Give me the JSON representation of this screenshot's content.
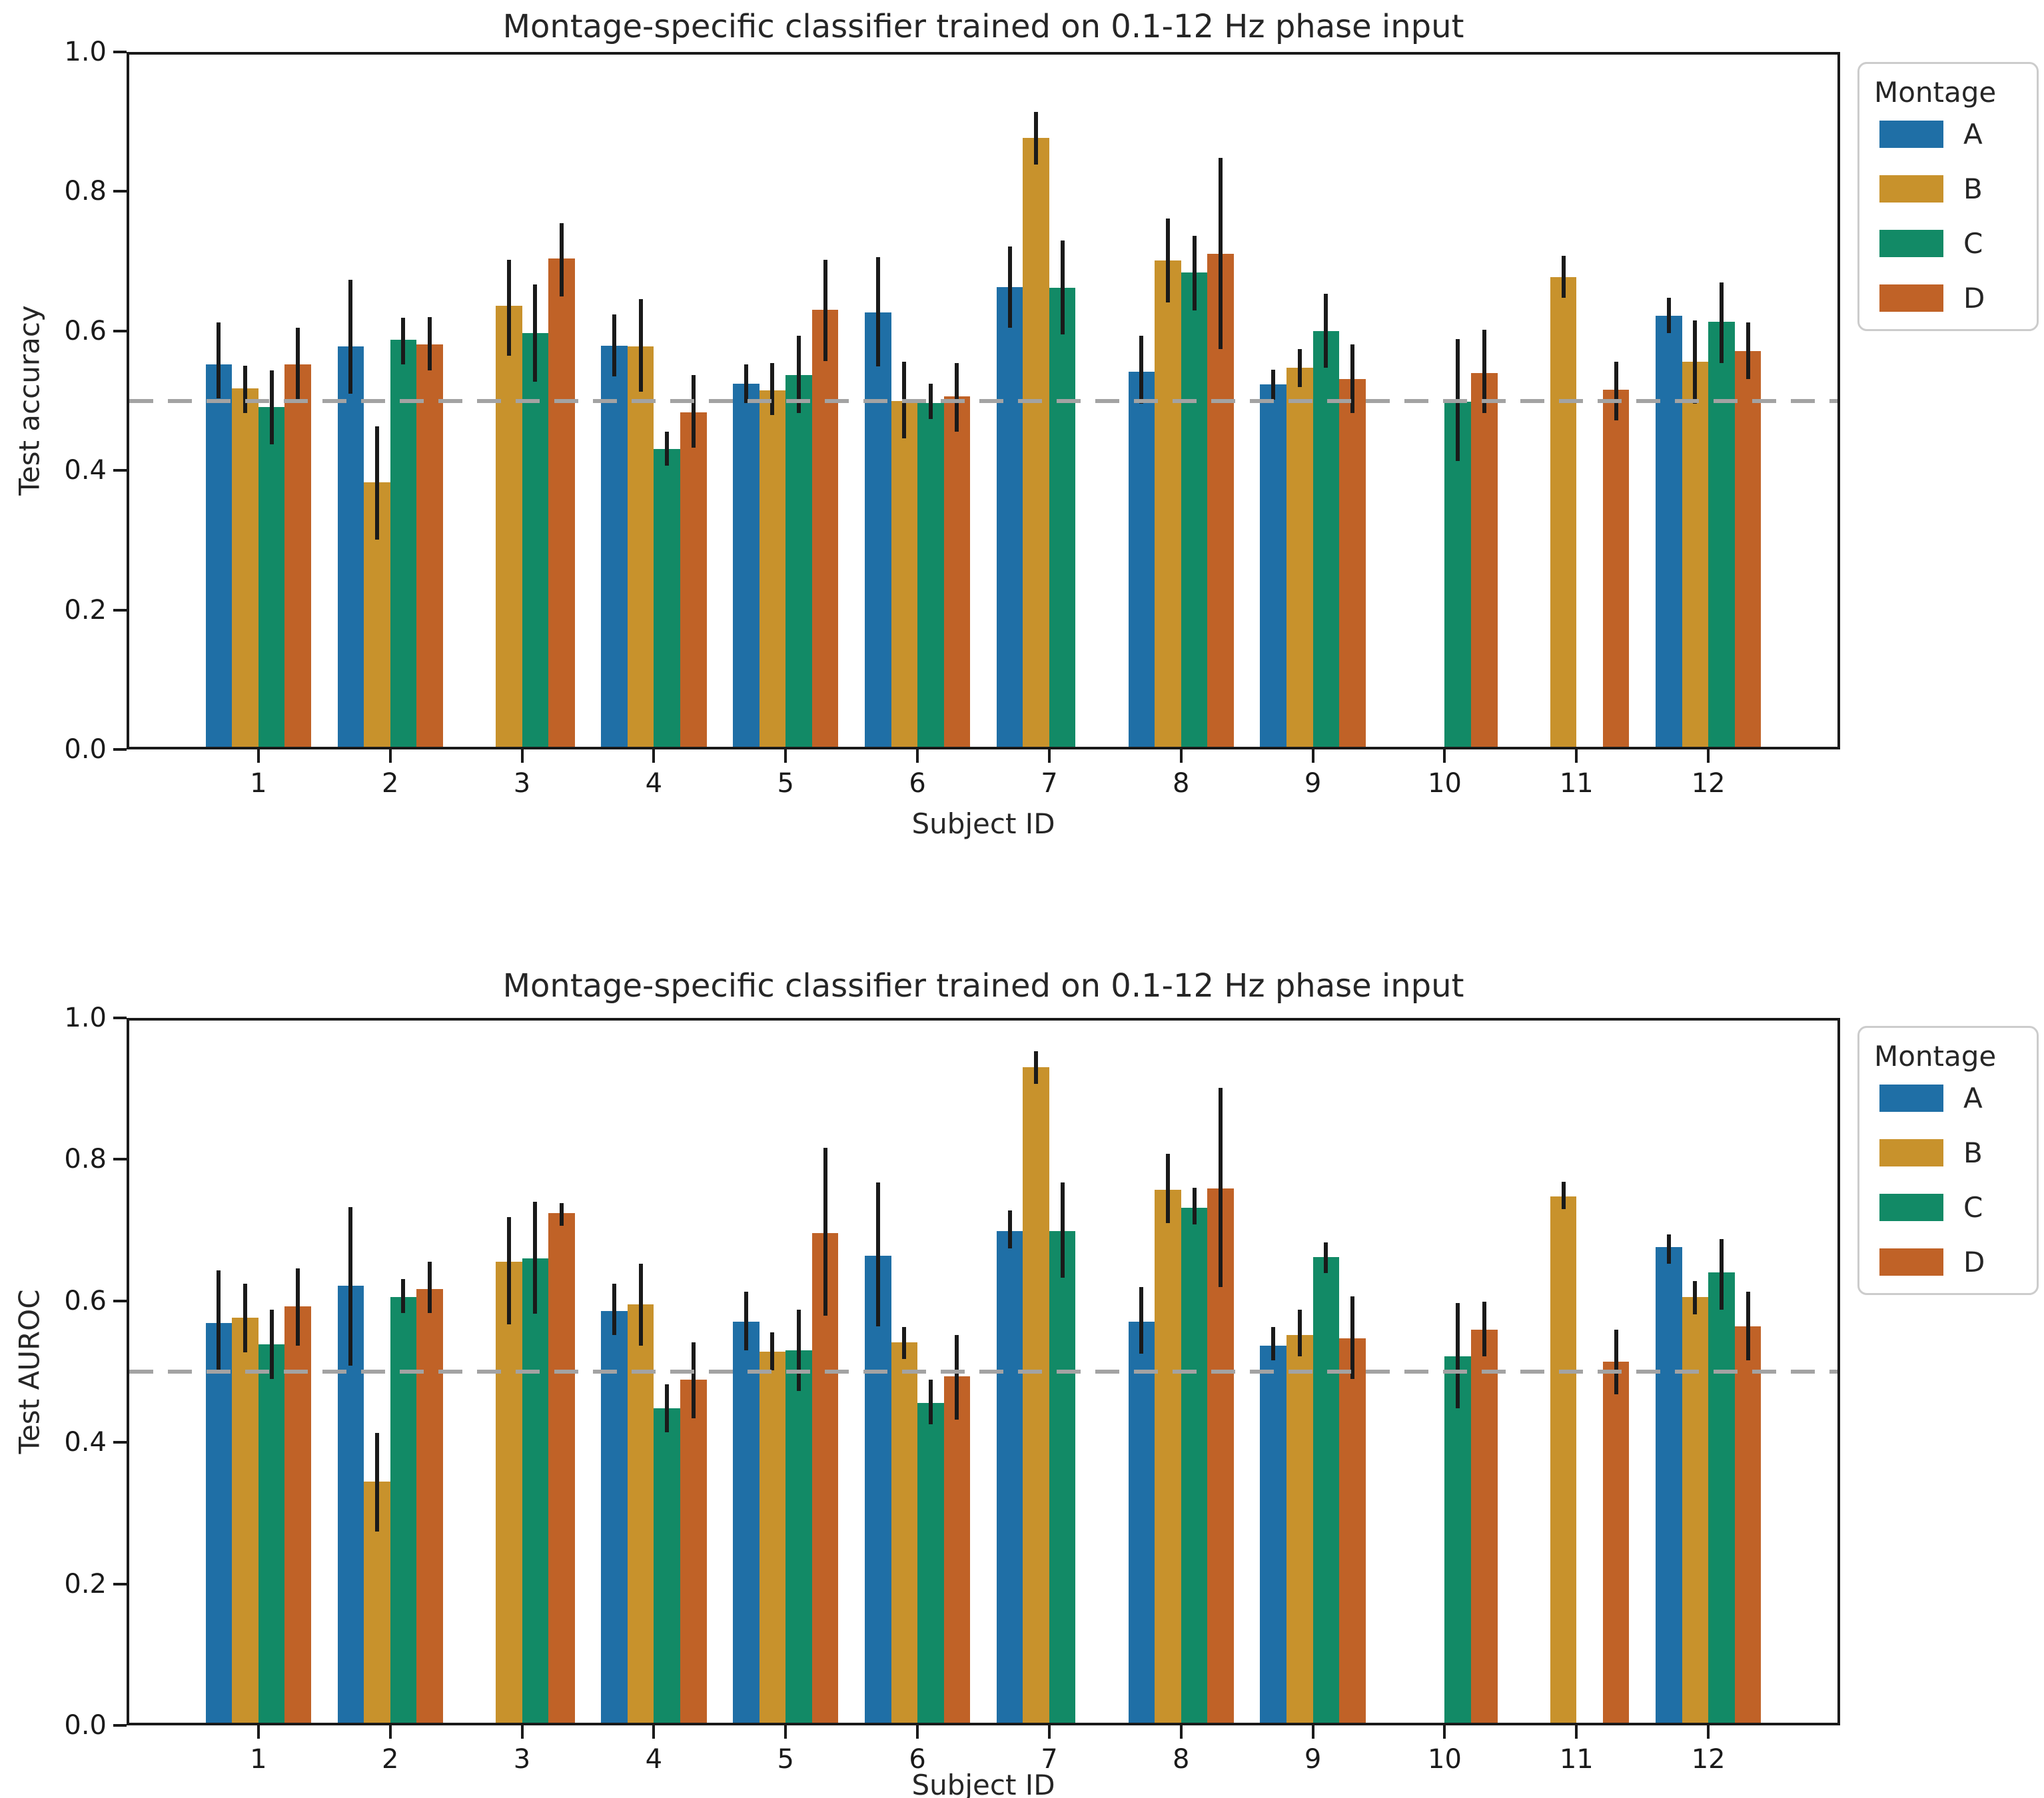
{
  "figure": {
    "background": "#ffffff",
    "chance_line": {
      "value": 0.5,
      "style": "dashed",
      "color": "#a3a3a3"
    }
  },
  "legend": {
    "title": "Montage",
    "items": [
      {
        "label": "A",
        "color": "#1f6fa6"
      },
      {
        "label": "B",
        "color": "#c8922c"
      },
      {
        "label": "C",
        "color": "#128a66"
      },
      {
        "label": "D",
        "color": "#c06227"
      }
    ]
  },
  "chart_data": [
    {
      "type": "bar",
      "title": "Montage-specific classifier trained on 0.1-12 Hz phase input",
      "xlabel": "Subject ID",
      "ylabel": "Test accuracy",
      "ylim": [
        0.0,
        1.0
      ],
      "yticks": [
        "1.0",
        "0.8",
        "0.6",
        "0.4",
        "0.2",
        "0.0"
      ],
      "ytick_values": [
        1.0,
        0.8,
        0.6,
        0.4,
        0.2,
        0.0
      ],
      "grid": false,
      "legend_position": "upper right outside",
      "chance_level": 0.5,
      "categories": [
        "1",
        "2",
        "3",
        "4",
        "5",
        "6",
        "7",
        "8",
        "9",
        "10",
        "11",
        "12"
      ],
      "series": [
        {
          "name": "A",
          "color": "#1f6fa6",
          "values": [
            0.552,
            0.578,
            null,
            0.579,
            0.524,
            0.627,
            0.663,
            0.542,
            0.523,
            null,
            null,
            0.622
          ],
          "err_lo": [
            0.503,
            0.51,
            null,
            0.535,
            0.497,
            0.549,
            0.605,
            0.496,
            0.501,
            null,
            null,
            0.597
          ],
          "err_hi": [
            0.612,
            0.673,
            null,
            0.624,
            0.552,
            0.706,
            0.721,
            0.593,
            0.544,
            null,
            null,
            0.648
          ]
        },
        {
          "name": "B",
          "color": "#c8922c",
          "values": [
            0.518,
            0.383,
            0.636,
            0.578,
            0.515,
            0.5,
            0.877,
            0.701,
            0.547,
            null,
            0.677,
            0.556
          ],
          "err_lo": [
            0.482,
            0.301,
            0.564,
            0.513,
            0.479,
            0.446,
            0.839,
            0.641,
            0.52,
            null,
            0.648,
            0.496
          ],
          "err_hi": [
            0.55,
            0.463,
            0.702,
            0.646,
            0.554,
            0.556,
            0.914,
            0.761,
            0.574,
            null,
            0.708,
            0.615
          ]
        },
        {
          "name": "C",
          "color": "#128a66",
          "values": [
            0.491,
            0.587,
            0.597,
            0.431,
            0.537,
            0.497,
            0.662,
            0.684,
            0.6,
            0.499,
            null,
            0.613
          ],
          "err_lo": [
            0.437,
            0.552,
            0.527,
            0.407,
            0.482,
            0.474,
            0.595,
            0.629,
            0.547,
            0.414,
            null,
            0.554
          ],
          "err_hi": [
            0.543,
            0.619,
            0.667,
            0.456,
            0.593,
            0.524,
            0.73,
            0.736,
            0.653,
            0.588,
            null,
            0.67
          ]
        },
        {
          "name": "D",
          "color": "#c06227",
          "values": [
            0.552,
            0.581,
            0.704,
            0.483,
            0.63,
            0.506,
            null,
            0.711,
            0.531,
            0.54,
            0.516,
            0.571
          ],
          "err_lo": [
            0.499,
            0.543,
            0.649,
            0.433,
            0.557,
            0.456,
            null,
            0.574,
            0.482,
            0.482,
            0.472,
            0.531
          ],
          "err_hi": [
            0.605,
            0.62,
            0.755,
            0.537,
            0.702,
            0.554,
            null,
            0.848,
            0.581,
            0.602,
            0.556,
            0.612
          ]
        }
      ]
    },
    {
      "type": "bar",
      "title": "Montage-specific classifier trained on 0.1-12 Hz phase input",
      "xlabel": "Subject ID",
      "ylabel": "Test AUROC",
      "ylim": [
        0.0,
        1.0
      ],
      "yticks": [
        "1.0",
        "0.8",
        "0.6",
        "0.4",
        "0.2",
        "0.0"
      ],
      "ytick_values": [
        1.0,
        0.8,
        0.6,
        0.4,
        0.2,
        0.0
      ],
      "grid": false,
      "legend_position": "upper right outside",
      "chance_level": 0.5,
      "categories": [
        "1",
        "2",
        "3",
        "4",
        "5",
        "6",
        "7",
        "8",
        "9",
        "10",
        "11",
        "12"
      ],
      "series": [
        {
          "name": "A",
          "color": "#1f6fa6",
          "values": [
            0.569,
            0.621,
            null,
            0.586,
            0.571,
            0.664,
            0.699,
            0.571,
            0.537,
            null,
            null,
            0.676
          ],
          "err_lo": [
            0.497,
            0.508,
            null,
            0.552,
            0.53,
            0.564,
            0.674,
            0.525,
            0.516,
            null,
            null,
            0.653
          ],
          "err_hi": [
            0.643,
            0.733,
            null,
            0.624,
            0.613,
            0.767,
            0.728,
            0.62,
            0.563,
            null,
            null,
            0.694
          ]
        },
        {
          "name": "B",
          "color": "#c8922c",
          "values": [
            0.576,
            0.345,
            0.655,
            0.595,
            0.528,
            0.541,
            0.93,
            0.757,
            0.552,
            null,
            0.748,
            0.605
          ],
          "err_lo": [
            0.527,
            0.274,
            0.567,
            0.537,
            0.502,
            0.518,
            0.907,
            0.71,
            0.522,
            null,
            0.73,
            0.581
          ],
          "err_hi": [
            0.624,
            0.413,
            0.718,
            0.653,
            0.556,
            0.563,
            0.953,
            0.808,
            0.588,
            null,
            0.768,
            0.628
          ]
        },
        {
          "name": "C",
          "color": "#128a66",
          "values": [
            0.539,
            0.605,
            0.66,
            0.448,
            0.53,
            0.456,
            0.699,
            0.732,
            0.662,
            0.522,
            null,
            0.64
          ],
          "err_lo": [
            0.49,
            0.583,
            0.582,
            0.414,
            0.473,
            0.426,
            0.633,
            0.708,
            0.639,
            0.448,
            null,
            0.588
          ],
          "err_hi": [
            0.588,
            0.631,
            0.74,
            0.482,
            0.588,
            0.489,
            0.767,
            0.76,
            0.683,
            0.597,
            null,
            0.687
          ]
        },
        {
          "name": "D",
          "color": "#c06227",
          "values": [
            0.592,
            0.617,
            0.724,
            0.489,
            0.696,
            0.493,
            null,
            0.759,
            0.547,
            0.559,
            0.514,
            0.564
          ],
          "err_lo": [
            0.537,
            0.583,
            0.706,
            0.434,
            0.579,
            0.432,
            null,
            0.62,
            0.49,
            0.522,
            0.468,
            0.516
          ],
          "err_hi": [
            0.646,
            0.655,
            0.738,
            0.541,
            0.816,
            0.552,
            null,
            0.901,
            0.606,
            0.599,
            0.559,
            0.613
          ]
        }
      ]
    }
  ]
}
